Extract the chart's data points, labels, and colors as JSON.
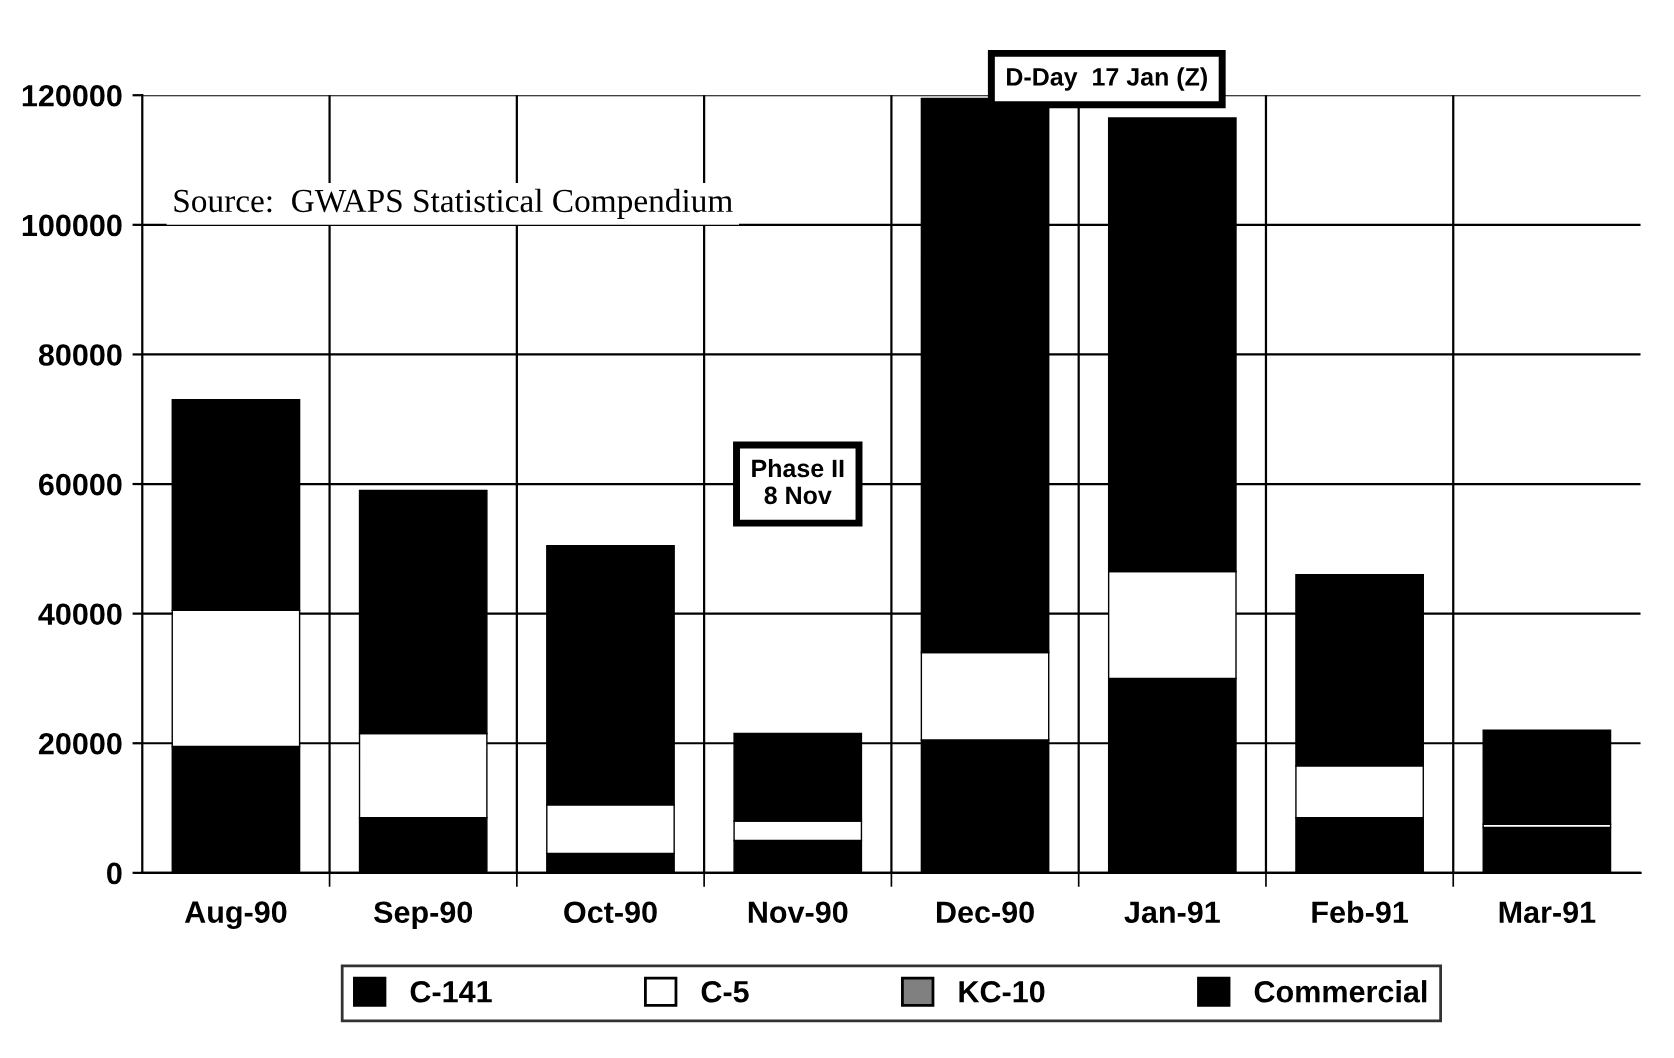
{
  "chart_data": {
    "type": "bar",
    "stacked": true,
    "categories": [
      "Aug-90",
      "Sep-90",
      "Oct-90",
      "Nov-90",
      "Dec-90",
      "Jan-91",
      "Feb-91",
      "Mar-91"
    ],
    "series": [
      {
        "name": "C-141",
        "color": "#000000",
        "values": [
          19500,
          8500,
          3000,
          5000,
          20500,
          30000,
          8500,
          7000
        ]
      },
      {
        "name": "C-5",
        "color": "#ffffff",
        "values": [
          21000,
          13000,
          7500,
          3000,
          13500,
          16500,
          8000,
          500
        ]
      },
      {
        "name": "KC-10",
        "color": "#808080",
        "values": [
          null,
          null,
          null,
          null,
          null,
          null,
          null,
          null
        ]
      },
      {
        "name": "Commercial",
        "color": "#000000",
        "values": [
          32500,
          37500,
          40000,
          13500,
          85500,
          70000,
          29500,
          14500
        ]
      }
    ],
    "ylim": [
      0,
      120000
    ],
    "yticks": [
      0,
      20000,
      40000,
      60000,
      80000,
      100000,
      120000
    ],
    "grid": true,
    "legend": "bottom",
    "annotations": [
      "Source:  GWAPS Statistical Compendium",
      "Phase II\n8 Nov",
      "D-Day  17 Jan (Z)"
    ]
  }
}
